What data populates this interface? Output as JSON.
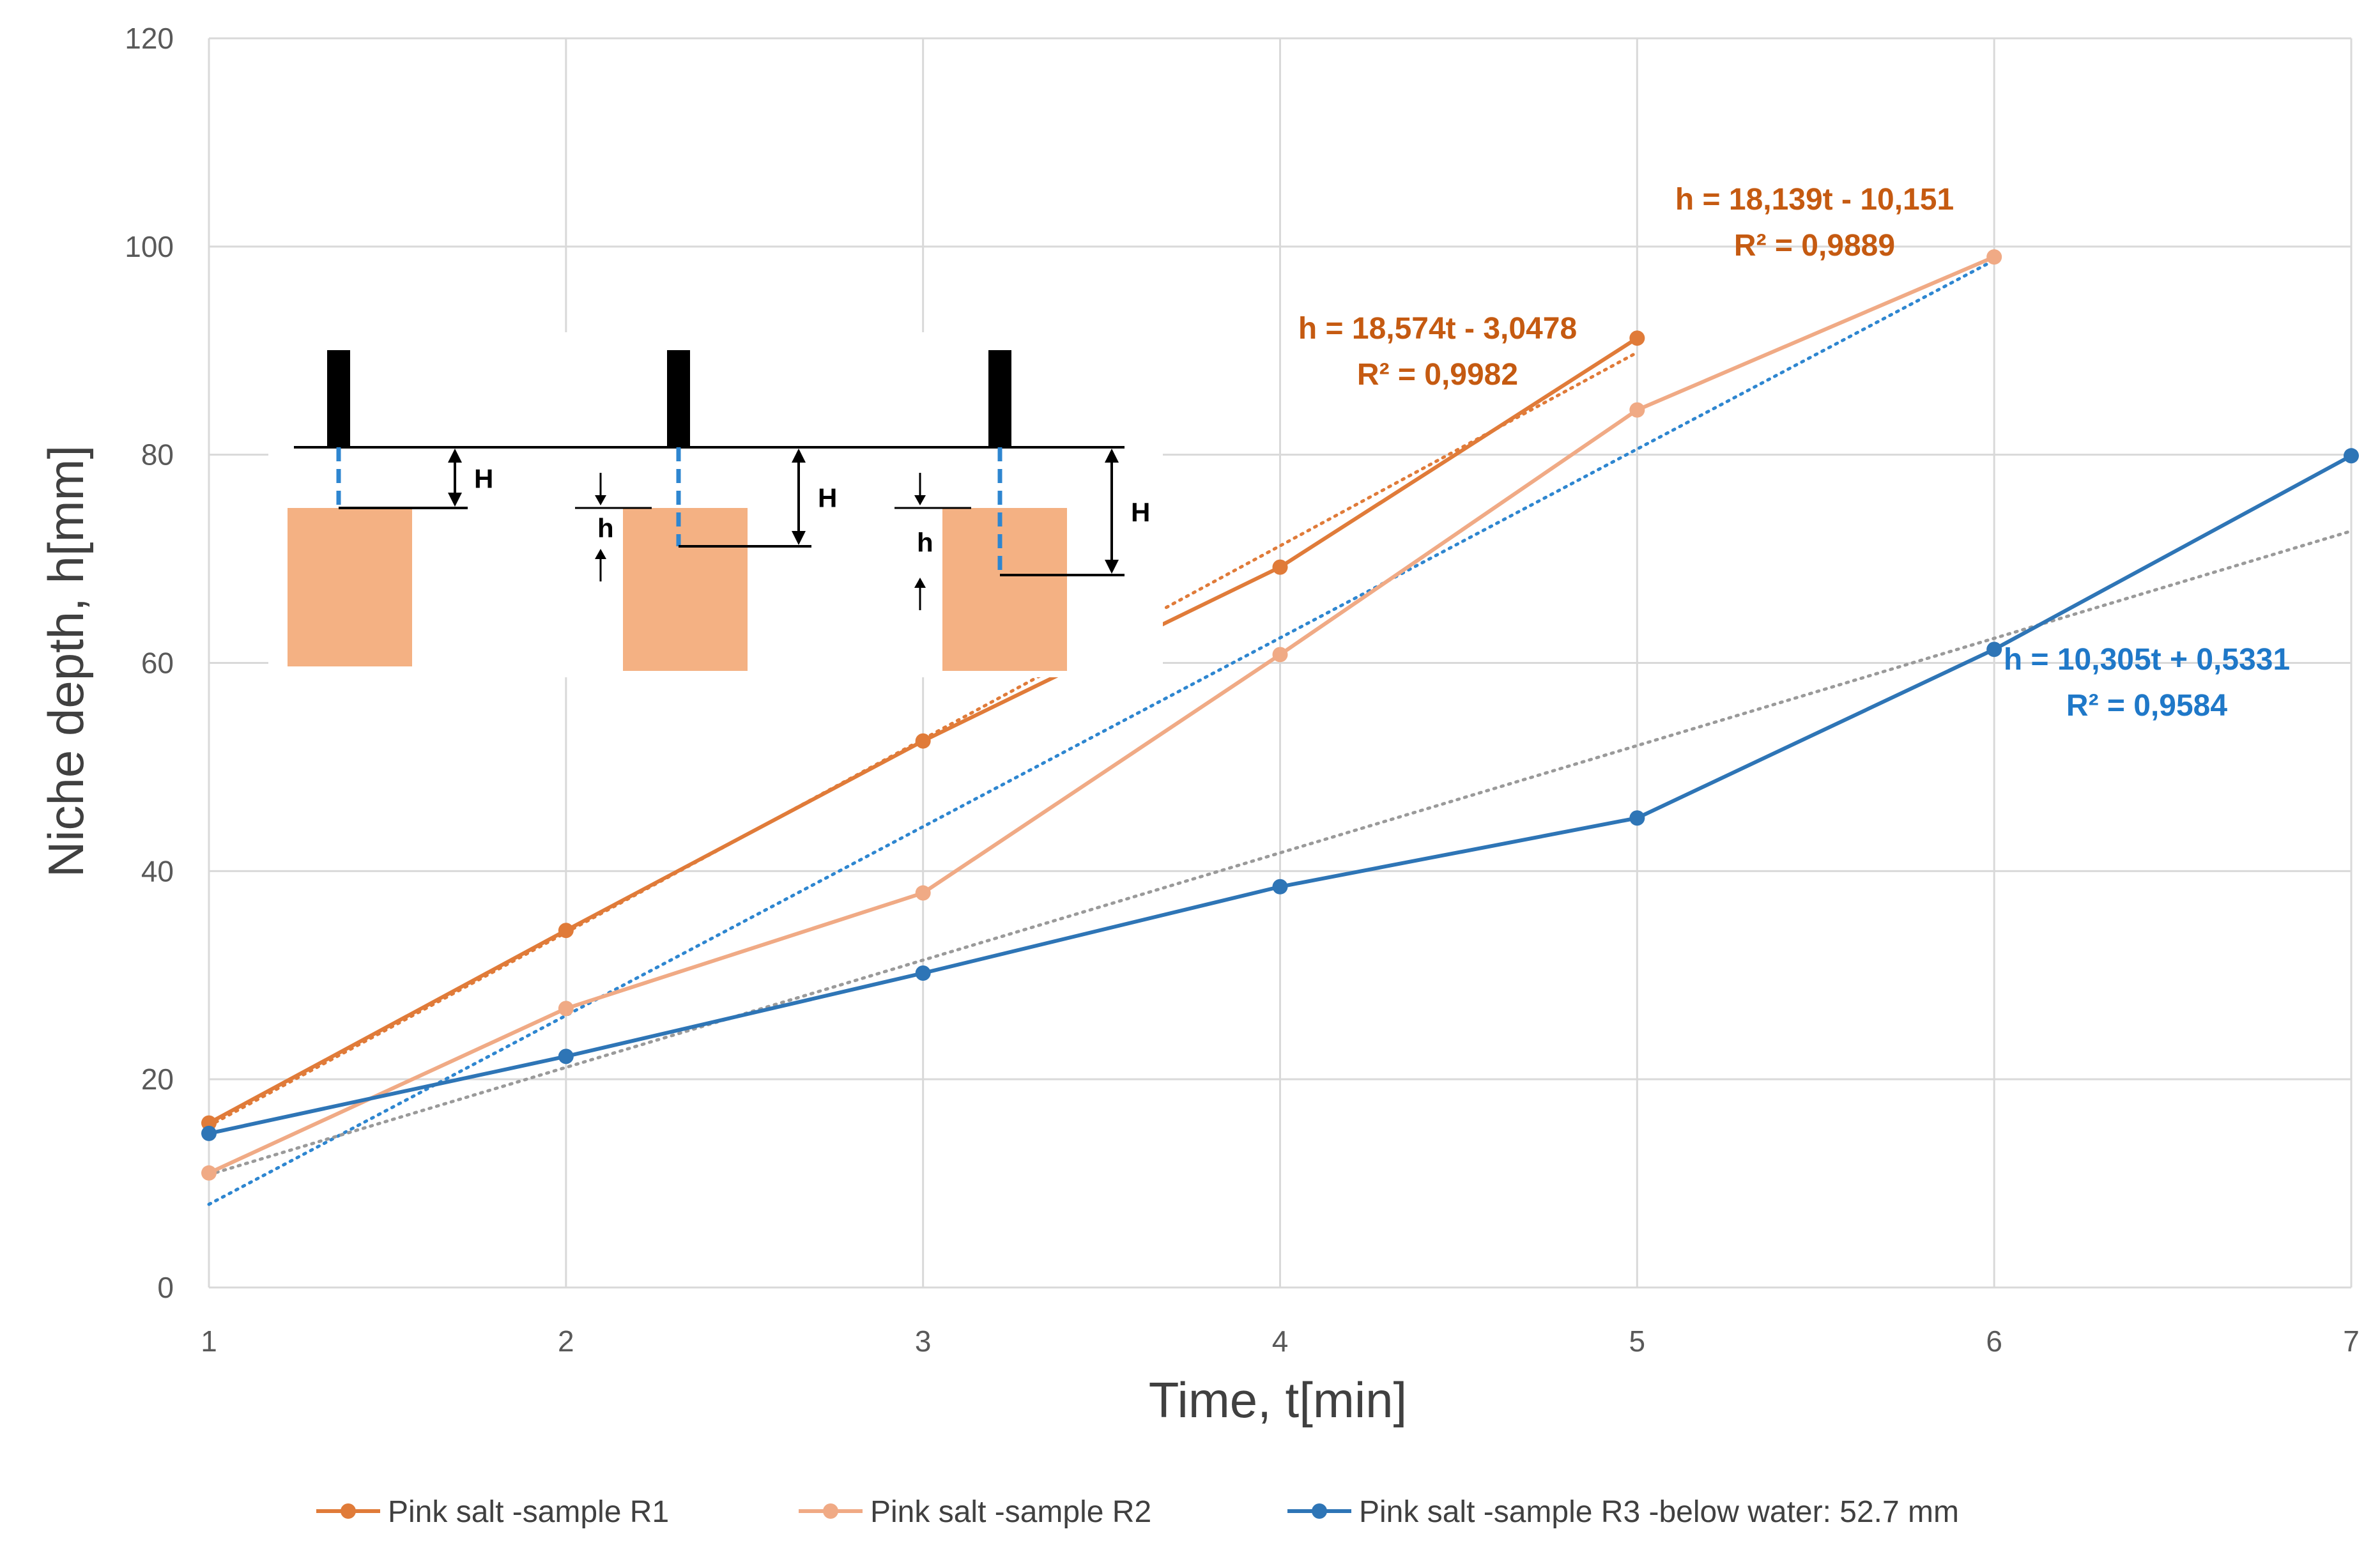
{
  "chart_data": {
    "type": "line",
    "title": "",
    "xlabel": "Time, t[min]",
    "ylabel": "Niche depth, h[mm]",
    "xlim": [
      1,
      7
    ],
    "ylim": [
      0,
      120
    ],
    "x_ticks": [
      1,
      2,
      3,
      4,
      5,
      6,
      7
    ],
    "y_ticks": [
      0,
      20,
      40,
      60,
      80,
      100,
      120
    ],
    "grid": true,
    "legend_position": "bottom",
    "series": [
      {
        "name": "Pink salt -sample  R1",
        "color": "#E07B39",
        "marker": "circle",
        "x": [
          1,
          2,
          3,
          4,
          5
        ],
        "y": [
          15.8,
          34.3,
          52.5,
          69.2,
          91.2
        ],
        "trendline": {
          "slope": 18.574,
          "intercept": -3.0478,
          "x_range": [
            1,
            5
          ],
          "color": "#E07B39"
        },
        "equation": "h = 18,574t - 3,0478",
        "r2": "R² = 0,9982",
        "label_color": "#C55A11"
      },
      {
        "name": "Pink salt -sample  R2",
        "color": "#F0AA85",
        "marker": "circle",
        "x": [
          1,
          2,
          3,
          4,
          5,
          6
        ],
        "y": [
          11,
          26.8,
          37.9,
          60.8,
          84.3,
          99
        ],
        "trendline": {
          "slope": 18.139,
          "intercept": -10.151,
          "x_range": [
            1,
            6
          ],
          "color": "#2E86D0"
        },
        "equation": "h = 18,139t - 10,151",
        "r2": "R² = 0,9889",
        "label_color": "#C55A11"
      },
      {
        "name": "Pink salt -sample  R3 -below water: 52.7 mm",
        "color": "#2E75B6",
        "marker": "circle",
        "x": [
          1,
          2,
          3,
          4,
          5,
          6,
          7
        ],
        "y": [
          14.8,
          22.2,
          30.2,
          38.5,
          45.1,
          61.3,
          79.9
        ],
        "trendline": {
          "slope": 10.305,
          "intercept": 0.5331,
          "x_range": [
            1,
            7
          ],
          "color": "#9A9A9A"
        },
        "equation": "h = 10,305t + 0,5331",
        "r2": "R² = 0,9584",
        "label_color": "#1F78C8"
      }
    ],
    "inset": {
      "labels": [
        "H",
        "h",
        "H",
        "h",
        "H"
      ],
      "block_color": "#F4B183",
      "probe_color": "#000000",
      "line_color": "#2E86D0"
    }
  }
}
